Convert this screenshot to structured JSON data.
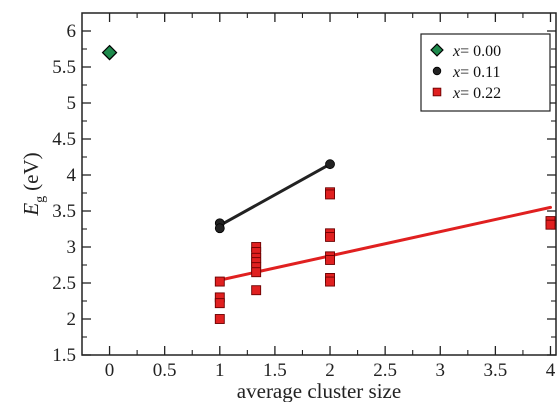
{
  "chart_data": {
    "type": "scatter",
    "title": "",
    "xlabel": "average cluster size",
    "ylabel": "E_g (eV)",
    "ylabel_parts": {
      "symbol": "E",
      "subscript": "g",
      "unit": "(eV)"
    },
    "xlim": [
      -0.25,
      4.05
    ],
    "ylim": [
      1.5,
      6.25
    ],
    "x_ticks": [
      0,
      0.5,
      1,
      1.5,
      2,
      2.5,
      3,
      3.5,
      4
    ],
    "x_tick_labels": [
      "0",
      "0.5",
      "1",
      "1.5",
      "2",
      "2.5",
      "3",
      "3.5",
      "4"
    ],
    "y_ticks": [
      1.5,
      2,
      2.5,
      3,
      3.5,
      4,
      4.5,
      5,
      5.5,
      6
    ],
    "y_tick_labels": [
      "1.5",
      "2",
      "2.5",
      "3",
      "3.5",
      "4",
      "4.5",
      "5",
      "5.5",
      "6"
    ],
    "grid": false,
    "legend_position": "top-right",
    "series": [
      {
        "name": "x= 0.00",
        "legend_var": "x",
        "legend_value": "= 0.00",
        "marker": "diamond",
        "color": "#1e8a4c",
        "points": [
          [
            0,
            5.7
          ]
        ]
      },
      {
        "name": "x= 0.11",
        "legend_var": "x",
        "legend_value": "= 0.11",
        "marker": "circle",
        "color": "#222222",
        "points": [
          [
            1,
            3.33
          ],
          [
            1,
            3.26
          ],
          [
            2,
            4.15
          ]
        ],
        "fit_line": {
          "x": [
            1,
            2
          ],
          "y": [
            3.3,
            4.15
          ],
          "color": "#222222"
        }
      },
      {
        "name": "x= 0.22",
        "legend_var": "x",
        "legend_value": "= 0.22",
        "marker": "square",
        "color": "#e02020",
        "points": [
          [
            1,
            2.52
          ],
          [
            1,
            2.3
          ],
          [
            1,
            2.22
          ],
          [
            1,
            2.0
          ],
          [
            1.33,
            3.0
          ],
          [
            1.33,
            2.93
          ],
          [
            1.33,
            2.85
          ],
          [
            1.33,
            2.79
          ],
          [
            1.33,
            2.72
          ],
          [
            1.33,
            2.65
          ],
          [
            1.33,
            2.4
          ],
          [
            2,
            3.76
          ],
          [
            2,
            3.73
          ],
          [
            2,
            3.19
          ],
          [
            2,
            3.14
          ],
          [
            2,
            2.87
          ],
          [
            2,
            2.82
          ],
          [
            2,
            2.57
          ],
          [
            2,
            2.52
          ],
          [
            4,
            3.36
          ],
          [
            4,
            3.31
          ]
        ],
        "fit_line": {
          "x": [
            1,
            4
          ],
          "y": [
            2.54,
            3.55
          ],
          "color": "#e02020"
        }
      }
    ]
  }
}
